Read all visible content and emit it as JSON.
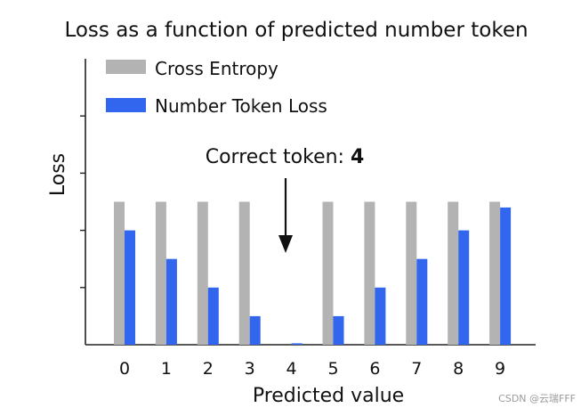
{
  "chart_data": {
    "type": "bar",
    "title": "Loss as a function of predicted number token",
    "xlabel": "Predicted value",
    "ylabel": "Loss",
    "categories": [
      "0",
      "1",
      "2",
      "3",
      "4",
      "5",
      "6",
      "7",
      "8",
      "9"
    ],
    "series": [
      {
        "name": "Cross Entropy",
        "color": "#b3b3b3",
        "values": [
          1,
          1,
          1,
          1,
          0,
          1,
          1,
          1,
          1,
          1
        ]
      },
      {
        "name": "Number Token Loss",
        "color": "#3366ee",
        "values": [
          0.8,
          0.6,
          0.4,
          0.2,
          0.01,
          0.2,
          0.4,
          0.6,
          0.8,
          0.96
        ]
      }
    ],
    "ylim": [
      0,
      2
    ],
    "grid": false,
    "legend_position": "top-left",
    "annotation": {
      "text": "Correct token: ",
      "value": "4",
      "target_category": "4"
    }
  },
  "watermark": "CSDN @云瑞FFF"
}
